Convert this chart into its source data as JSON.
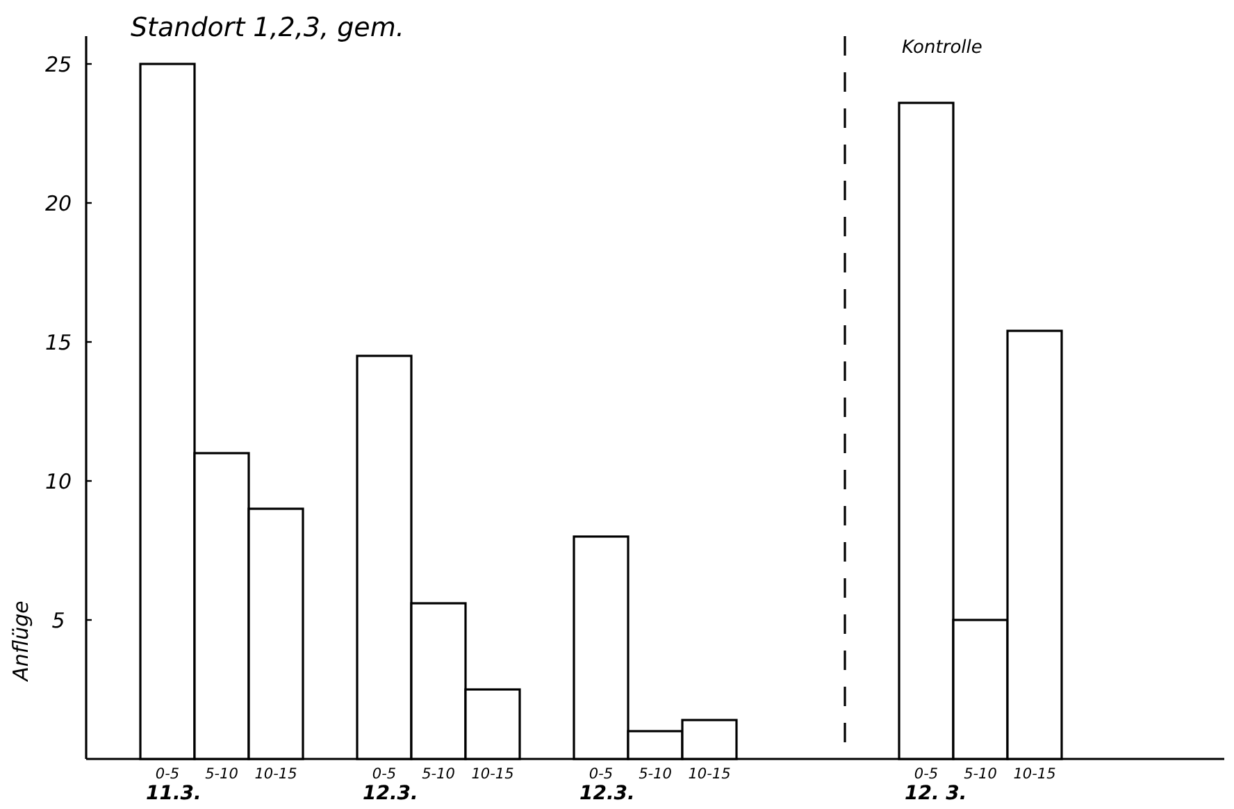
{
  "chart_data": [
    {
      "type": "bar",
      "title": "Standort 1,2,3, gem.",
      "ylabel": "Anflüge",
      "categories": [
        null,
        "0-5",
        "5-10",
        "10-15",
        null,
        "0-5",
        "5-10",
        "10-15",
        null,
        "0-5",
        "5-10",
        "10-15",
        null,
        null
      ],
      "values": [
        null,
        25,
        11,
        9,
        null,
        14.5,
        5.6,
        2.5,
        null,
        8,
        1,
        1.4,
        null,
        null
      ],
      "color": "#ffffff",
      "ylim": [
        0,
        26
      ],
      "yticks": [
        5,
        10,
        15,
        20,
        25
      ],
      "annotations": [
        "11.3.",
        "12.3.",
        "12.3."
      ]
    },
    {
      "type": "bar",
      "title": "Kontrolle",
      "categories": [
        null,
        "0-5",
        "5-10",
        "10-15",
        null,
        null,
        null
      ],
      "values": [
        null,
        23.6,
        5,
        15.4,
        null,
        null,
        null
      ],
      "color": "#ffffff",
      "ylim": [
        0,
        26
      ],
      "tick_labels": "x",
      "annotations": [
        "12. 3."
      ]
    }
  ]
}
